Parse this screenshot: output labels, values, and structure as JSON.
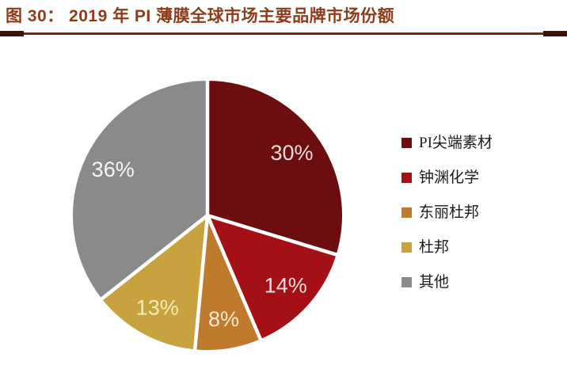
{
  "figure": {
    "title": "图 30： 2019 年 PI 薄膜全球市场主要品牌市场份额",
    "title_color": "#8E3B1A",
    "rule_color": "#7C2416",
    "rule_cap_color": "#44100E"
  },
  "chart_data": {
    "type": "pie",
    "title": "2019 年 PI 薄膜全球市场主要品牌市场份额",
    "categories": [
      "PI尖端素材",
      "钟渊化学",
      "东丽杜邦",
      "杜邦",
      "其他"
    ],
    "values": [
      30,
      14,
      8,
      13,
      36
    ],
    "unit": "%",
    "data_labels": [
      "30%",
      "14%",
      "8%",
      "13%",
      "36%"
    ],
    "slice_colors": [
      "#6C0E10",
      "#A50F16",
      "#BF7A2D",
      "#C7A23E",
      "#8A8A8A"
    ],
    "data_label_colors": [
      "#F1DBDB",
      "#F6DEDE",
      "#F8EDD3",
      "#F6EDBE",
      "#F7F5F5"
    ],
    "separator_color": "#FFFFFF",
    "legend_position": "right",
    "start_angle_deg": 0,
    "direction": "clockwise"
  }
}
